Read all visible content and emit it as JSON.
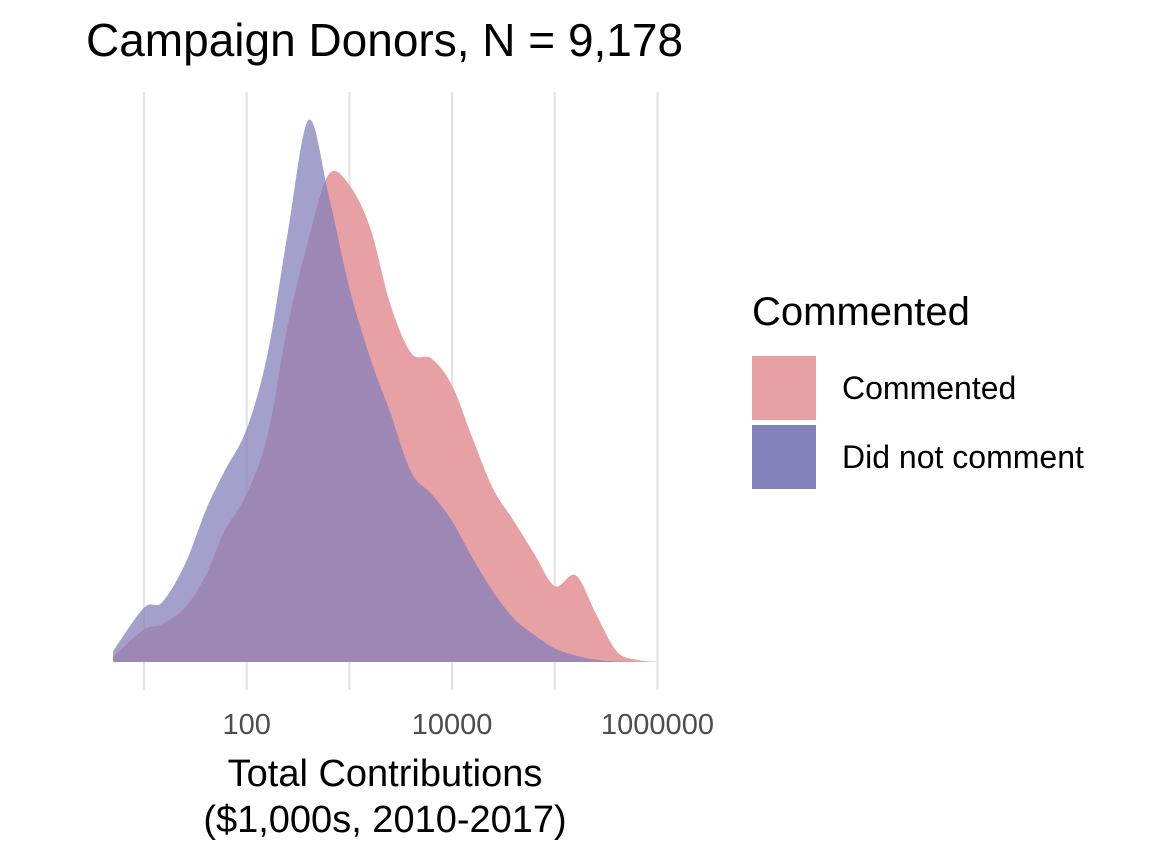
{
  "chart_data": {
    "type": "area",
    "title": "Campaign Donors, N = 9,178",
    "xlabel_lines": [
      "Total Contributions",
      "($1,000s, 2010-2017)"
    ],
    "ylabel": "",
    "x_scale": "log10",
    "xlim": [
      5,
      1000000
    ],
    "x_ticks": [
      10,
      100,
      1000,
      10000,
      100000,
      1000000
    ],
    "x_tick_labels": [
      "",
      "100",
      "",
      "10000",
      "",
      "1000000"
    ],
    "grid": "vertical",
    "legend": {
      "title": "Commented",
      "position": "right"
    },
    "series": [
      {
        "name": "Commented",
        "color": "#E7A1A4",
        "points": [
          [
            5,
            0.01
          ],
          [
            10,
            0.06
          ],
          [
            15,
            0.07
          ],
          [
            25,
            0.1
          ],
          [
            40,
            0.16
          ],
          [
            60,
            0.24
          ],
          [
            100,
            0.31
          ],
          [
            160,
            0.42
          ],
          [
            250,
            0.62
          ],
          [
            400,
            0.78
          ],
          [
            630,
            0.9
          ],
          [
            1000,
            0.88
          ],
          [
            1600,
            0.8
          ],
          [
            2500,
            0.66
          ],
          [
            4000,
            0.57
          ],
          [
            6300,
            0.56
          ],
          [
            10000,
            0.51
          ],
          [
            16000,
            0.41
          ],
          [
            25000,
            0.32
          ],
          [
            40000,
            0.26
          ],
          [
            63000,
            0.2
          ],
          [
            100000,
            0.14
          ],
          [
            160000,
            0.16
          ],
          [
            250000,
            0.09
          ],
          [
            400000,
            0.02
          ],
          [
            630000,
            0.004
          ],
          [
            1000000,
            0.0
          ]
        ]
      },
      {
        "name": "Did not comment",
        "color": "#8480BB",
        "points": [
          [
            5,
            0.02
          ],
          [
            10,
            0.1
          ],
          [
            15,
            0.11
          ],
          [
            25,
            0.18
          ],
          [
            40,
            0.28
          ],
          [
            60,
            0.35
          ],
          [
            100,
            0.43
          ],
          [
            160,
            0.57
          ],
          [
            250,
            0.79
          ],
          [
            400,
            1.0
          ],
          [
            630,
            0.86
          ],
          [
            1000,
            0.69
          ],
          [
            1600,
            0.56
          ],
          [
            2500,
            0.46
          ],
          [
            4000,
            0.35
          ],
          [
            6300,
            0.31
          ],
          [
            10000,
            0.26
          ],
          [
            16000,
            0.19
          ],
          [
            25000,
            0.13
          ],
          [
            40000,
            0.08
          ],
          [
            63000,
            0.05
          ],
          [
            100000,
            0.025
          ],
          [
            160000,
            0.012
          ],
          [
            250000,
            0.004
          ],
          [
            400000,
            0.001
          ],
          [
            630000,
            0.0
          ],
          [
            1000000,
            0.0
          ]
        ]
      }
    ]
  }
}
